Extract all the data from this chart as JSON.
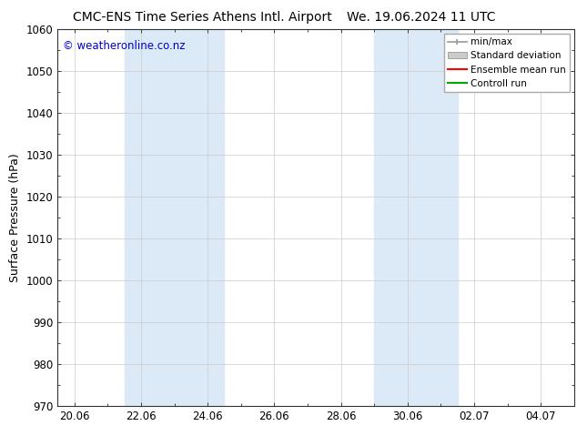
{
  "title_left": "CMC-ENS Time Series Athens Intl. Airport",
  "title_right": "We. 19.06.2024 11 UTC",
  "ylabel": "Surface Pressure (hPa)",
  "ylim": [
    970,
    1060
  ],
  "yticks": [
    970,
    980,
    990,
    1000,
    1010,
    1020,
    1030,
    1040,
    1050,
    1060
  ],
  "xtick_labels": [
    "20.06",
    "22.06",
    "24.06",
    "26.06",
    "28.06",
    "30.06",
    "02.07",
    "04.07"
  ],
  "xtick_positions": [
    0,
    2,
    4,
    6,
    8,
    10,
    12,
    14
  ],
  "xlim": [
    -0.5,
    15.0
  ],
  "watermark": "© weatheronline.co.nz",
  "watermark_color": "#0000cc",
  "background_color": "#ffffff",
  "shaded_regions": [
    {
      "x_start": 1.5,
      "x_end": 4.5
    },
    {
      "x_start": 9.0,
      "x_end": 11.5
    }
  ],
  "shaded_color": "#dce9f7",
  "legend_labels": [
    "min/max",
    "Standard deviation",
    "Ensemble mean run",
    "Controll run"
  ],
  "legend_colors": [
    "#999999",
    "#cccccc",
    "#ff0000",
    "#00aa00"
  ],
  "title_fontsize": 10,
  "axis_label_fontsize": 9,
  "tick_fontsize": 8.5
}
